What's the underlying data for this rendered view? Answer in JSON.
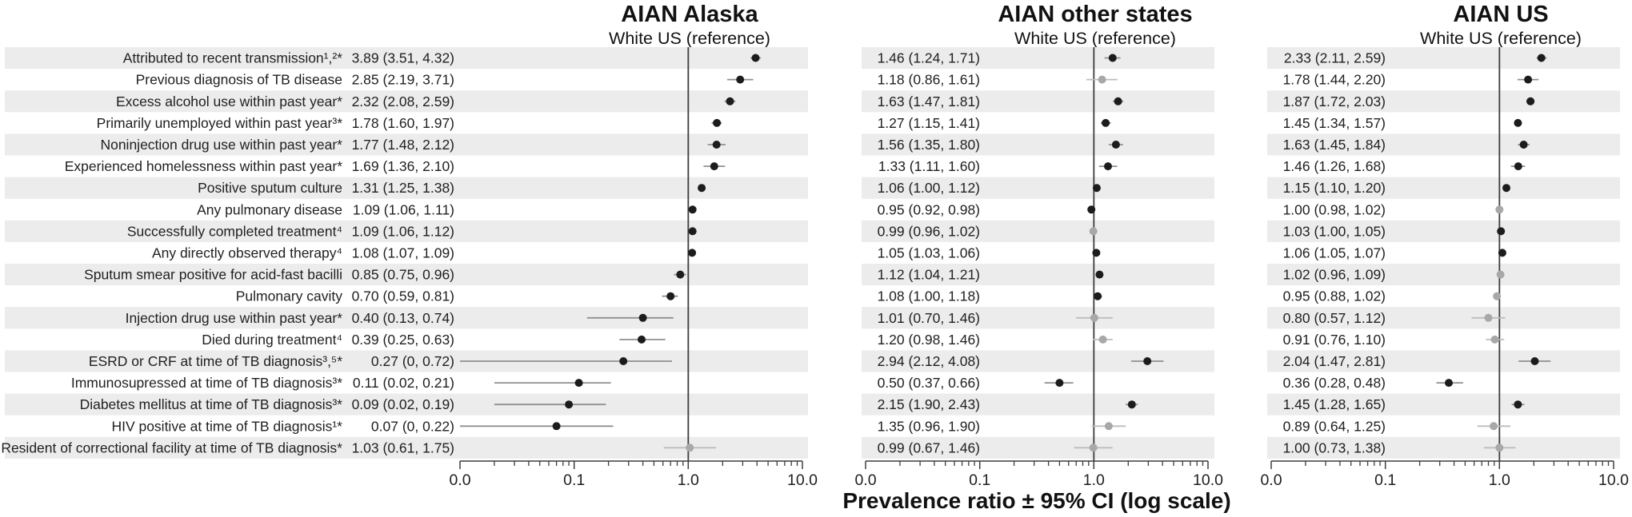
{
  "chart_data": {
    "type": "forest",
    "xlabel": "Prevalence ratio ± 95% CI (log scale)",
    "x_scale": "log",
    "x_range": [
      0.01,
      10
    ],
    "x_tick_labels": [
      "0.0",
      "0.1",
      "1.0",
      "10.0"
    ],
    "x_tick_values": [
      0.01,
      0.1,
      1,
      10
    ],
    "grid": "off",
    "legend": "none",
    "reference_line": 1.0,
    "rows": [
      "Attributed to recent transmission¹,²*",
      "Previous diagnosis of TB disease",
      "Excess alcohol use within past year*",
      "Primarily unemployed within past year³*",
      "Noninjection drug use within past year*",
      "Experienced homelessness within past year*",
      "Positive sputum culture",
      "Any pulmonary disease",
      "Successfully completed treatment⁴",
      "Any directly observed therapy⁴",
      "Sputum smear positive for acid-fast bacilli",
      "Pulmonary cavity",
      "Injection drug use within past year*",
      "Died during treatment⁴",
      "ESRD or CRF at time of TB diagnosis³,⁵*",
      "Immunosupressed at time of TB diagnosis³*",
      "Diabetes mellitus at time of TB diagnosis³*",
      "HIV positive at time of TB diagnosis¹*",
      "Resident of correctional facility at time of TB diagnosis*"
    ],
    "panels": [
      {
        "title": "AIAN Alaska",
        "subtitle": "White US (reference)",
        "values": [
          {
            "text": "3.89 (3.51, 4.32)",
            "est": 3.89,
            "lo": 3.51,
            "hi": 4.32
          },
          {
            "text": "2.85 (2.19, 3.71)",
            "est": 2.85,
            "lo": 2.19,
            "hi": 3.71
          },
          {
            "text": "2.32 (2.08, 2.59)",
            "est": 2.32,
            "lo": 2.08,
            "hi": 2.59
          },
          {
            "text": "1.78 (1.60, 1.97)",
            "est": 1.78,
            "lo": 1.6,
            "hi": 1.97
          },
          {
            "text": "1.77 (1.48, 2.12)",
            "est": 1.77,
            "lo": 1.48,
            "hi": 2.12
          },
          {
            "text": "1.69 (1.36, 2.10)",
            "est": 1.69,
            "lo": 1.36,
            "hi": 2.1
          },
          {
            "text": "1.31 (1.25, 1.38)",
            "est": 1.31,
            "lo": 1.25,
            "hi": 1.38
          },
          {
            "text": "1.09 (1.06, 1.11)",
            "est": 1.09,
            "lo": 1.06,
            "hi": 1.11
          },
          {
            "text": "1.09 (1.06, 1.12)",
            "est": 1.09,
            "lo": 1.06,
            "hi": 1.12
          },
          {
            "text": "1.08 (1.07, 1.09)",
            "est": 1.08,
            "lo": 1.07,
            "hi": 1.09
          },
          {
            "text": "0.85 (0.75, 0.96)",
            "est": 0.85,
            "lo": 0.75,
            "hi": 0.96
          },
          {
            "text": "0.70 (0.59, 0.81)",
            "est": 0.7,
            "lo": 0.59,
            "hi": 0.81
          },
          {
            "text": "0.40 (0.13, 0.74)",
            "est": 0.4,
            "lo": 0.13,
            "hi": 0.74
          },
          {
            "text": "0.39 (0.25, 0.63)",
            "est": 0.39,
            "lo": 0.25,
            "hi": 0.63
          },
          {
            "text": "0.27 (0, 0.72)",
            "est": 0.27,
            "lo": 0,
            "hi": 0.72
          },
          {
            "text": "0.11 (0.02, 0.21)",
            "est": 0.11,
            "lo": 0.02,
            "hi": 0.21
          },
          {
            "text": "0.09 (0.02, 0.19)",
            "est": 0.09,
            "lo": 0.02,
            "hi": 0.19
          },
          {
            "text": "0.07 (0, 0.22)",
            "est": 0.07,
            "lo": 0,
            "hi": 0.22
          },
          {
            "text": "1.03 (0.61, 1.75)",
            "est": 1.03,
            "lo": 0.61,
            "hi": 1.75
          }
        ]
      },
      {
        "title": "AIAN other states",
        "subtitle": "White US (reference)",
        "values": [
          {
            "text": "1.46 (1.24, 1.71)",
            "est": 1.46,
            "lo": 1.24,
            "hi": 1.71
          },
          {
            "text": "1.18 (0.86, 1.61)",
            "est": 1.18,
            "lo": 0.86,
            "hi": 1.61
          },
          {
            "text": "1.63 (1.47, 1.81)",
            "est": 1.63,
            "lo": 1.47,
            "hi": 1.81
          },
          {
            "text": "1.27 (1.15, 1.41)",
            "est": 1.27,
            "lo": 1.15,
            "hi": 1.41
          },
          {
            "text": "1.56 (1.35, 1.80)",
            "est": 1.56,
            "lo": 1.35,
            "hi": 1.8
          },
          {
            "text": "1.33 (1.11, 1.60)",
            "est": 1.33,
            "lo": 1.11,
            "hi": 1.6
          },
          {
            "text": "1.06 (1.00, 1.12)",
            "est": 1.06,
            "lo": 1.0,
            "hi": 1.12
          },
          {
            "text": "0.95 (0.92, 0.98)",
            "est": 0.95,
            "lo": 0.92,
            "hi": 0.98
          },
          {
            "text": "0.99 (0.96, 1.02)",
            "est": 0.99,
            "lo": 0.96,
            "hi": 1.02
          },
          {
            "text": "1.05 (1.03, 1.06)",
            "est": 1.05,
            "lo": 1.03,
            "hi": 1.06
          },
          {
            "text": "1.12 (1.04, 1.21)",
            "est": 1.12,
            "lo": 1.04,
            "hi": 1.21
          },
          {
            "text": "1.08 (1.00, 1.18)",
            "est": 1.08,
            "lo": 1.0,
            "hi": 1.18
          },
          {
            "text": "1.01 (0.70, 1.46)",
            "est": 1.01,
            "lo": 0.7,
            "hi": 1.46
          },
          {
            "text": "1.20 (0.98, 1.46)",
            "est": 1.2,
            "lo": 0.98,
            "hi": 1.46
          },
          {
            "text": "2.94 (2.12, 4.08)",
            "est": 2.94,
            "lo": 2.12,
            "hi": 4.08
          },
          {
            "text": "0.50 (0.37, 0.66)",
            "est": 0.5,
            "lo": 0.37,
            "hi": 0.66
          },
          {
            "text": "2.15 (1.90, 2.43)",
            "est": 2.15,
            "lo": 1.9,
            "hi": 2.43
          },
          {
            "text": "1.35 (0.96, 1.90)",
            "est": 1.35,
            "lo": 0.96,
            "hi": 1.9
          },
          {
            "text": "0.99 (0.67, 1.46)",
            "est": 0.99,
            "lo": 0.67,
            "hi": 1.46
          }
        ]
      },
      {
        "title": "AIAN US",
        "subtitle": "White US (reference)",
        "values": [
          {
            "text": "2.33 (2.11, 2.59)",
            "est": 2.33,
            "lo": 2.11,
            "hi": 2.59
          },
          {
            "text": "1.78 (1.44, 2.20)",
            "est": 1.78,
            "lo": 1.44,
            "hi": 2.2
          },
          {
            "text": "1.87 (1.72, 2.03)",
            "est": 1.87,
            "lo": 1.72,
            "hi": 2.03
          },
          {
            "text": "1.45 (1.34, 1.57)",
            "est": 1.45,
            "lo": 1.34,
            "hi": 1.57
          },
          {
            "text": "1.63 (1.45, 1.84)",
            "est": 1.63,
            "lo": 1.45,
            "hi": 1.84
          },
          {
            "text": "1.46 (1.26, 1.68)",
            "est": 1.46,
            "lo": 1.26,
            "hi": 1.68
          },
          {
            "text": "1.15 (1.10, 1.20)",
            "est": 1.15,
            "lo": 1.1,
            "hi": 1.2
          },
          {
            "text": "1.00 (0.98, 1.02)",
            "est": 1.0,
            "lo": 0.98,
            "hi": 1.02
          },
          {
            "text": "1.03 (1.00, 1.05)",
            "est": 1.03,
            "lo": 1.0,
            "hi": 1.05
          },
          {
            "text": "1.06 (1.05, 1.07)",
            "est": 1.06,
            "lo": 1.05,
            "hi": 1.07
          },
          {
            "text": "1.02 (0.96, 1.09)",
            "est": 1.02,
            "lo": 0.96,
            "hi": 1.09
          },
          {
            "text": "0.95 (0.88, 1.02)",
            "est": 0.95,
            "lo": 0.88,
            "hi": 1.02
          },
          {
            "text": "0.80 (0.57, 1.12)",
            "est": 0.8,
            "lo": 0.57,
            "hi": 1.12
          },
          {
            "text": "0.91 (0.76, 1.10)",
            "est": 0.91,
            "lo": 0.76,
            "hi": 1.1
          },
          {
            "text": "2.04 (1.47, 2.81)",
            "est": 2.04,
            "lo": 1.47,
            "hi": 2.81
          },
          {
            "text": "0.36 (0.28, 0.48)",
            "est": 0.36,
            "lo": 0.28,
            "hi": 0.48
          },
          {
            "text": "1.45 (1.28, 1.65)",
            "est": 1.45,
            "lo": 1.28,
            "hi": 1.65
          },
          {
            "text": "0.89 (0.64, 1.25)",
            "est": 0.89,
            "lo": 0.64,
            "hi": 1.25
          },
          {
            "text": "1.00 (0.73, 1.38)",
            "est": 1.0,
            "lo": 0.73,
            "hi": 1.38
          }
        ]
      }
    ]
  },
  "colors": {
    "row_band": "#ececec",
    "marker_significant": "#1c1c1c",
    "marker_nonsignificant": "#a8a8a8",
    "whisker_significant": "#909090",
    "whisker_nonsignificant": "#bdbdbd",
    "reference_line": "#3d3d3d",
    "axis": "#3d3d3d",
    "text": "#1f1f1f"
  }
}
